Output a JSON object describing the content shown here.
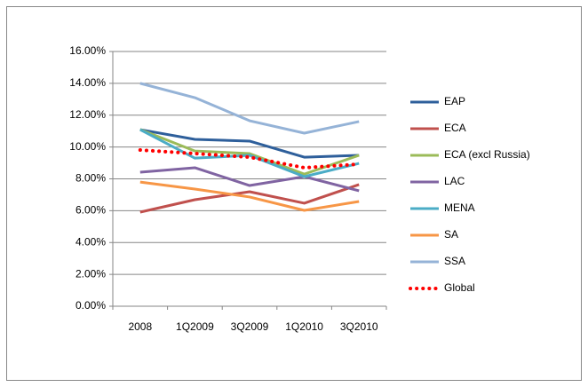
{
  "chart_data": {
    "type": "line",
    "categories": [
      "2008",
      "1Q2009",
      "3Q2009",
      "1Q2010",
      "3Q2010"
    ],
    "ylim": [
      0,
      16
    ],
    "yticks": [
      {
        "value": 0,
        "label": "0.00%"
      },
      {
        "value": 2,
        "label": "2.00%"
      },
      {
        "value": 4,
        "label": "4.00%"
      },
      {
        "value": 6,
        "label": "6.00%"
      },
      {
        "value": 8,
        "label": "8.00%"
      },
      {
        "value": 10,
        "label": "10.00%"
      },
      {
        "value": 12,
        "label": "12.00%"
      },
      {
        "value": 14,
        "label": "14.00%"
      },
      {
        "value": 16,
        "label": "16.00%"
      }
    ],
    "grid": true,
    "legend": "right",
    "series": [
      {
        "name": "EAP",
        "color": "#2e5f9b",
        "values": [
          11.09,
          10.48,
          10.37,
          9.36,
          9.48
        ]
      },
      {
        "name": "ECA",
        "color": "#c0504d",
        "values": [
          5.91,
          6.69,
          7.19,
          6.47,
          7.64
        ]
      },
      {
        "name": "ECA (excl Russia)",
        "color": "#9bbb59",
        "values": [
          11.1,
          9.75,
          9.59,
          8.3,
          9.48
        ]
      },
      {
        "name": "LAC",
        "color": "#8064a2",
        "values": [
          8.42,
          8.7,
          7.58,
          8.14,
          7.25
        ]
      },
      {
        "name": "MENA",
        "color": "#4bacc6",
        "values": [
          11.09,
          9.3,
          9.48,
          8.14,
          8.97
        ]
      },
      {
        "name": "SA",
        "color": "#f79646",
        "values": [
          7.8,
          7.36,
          6.86,
          6.02,
          6.58
        ]
      },
      {
        "name": "SSA",
        "color": "#95b3d7",
        "values": [
          14.0,
          13.1,
          11.65,
          10.87,
          11.6
        ]
      },
      {
        "name": "Global",
        "color": "#ff0000",
        "style": "dotted",
        "values": [
          9.81,
          9.59,
          9.36,
          8.7,
          8.92
        ]
      }
    ]
  }
}
